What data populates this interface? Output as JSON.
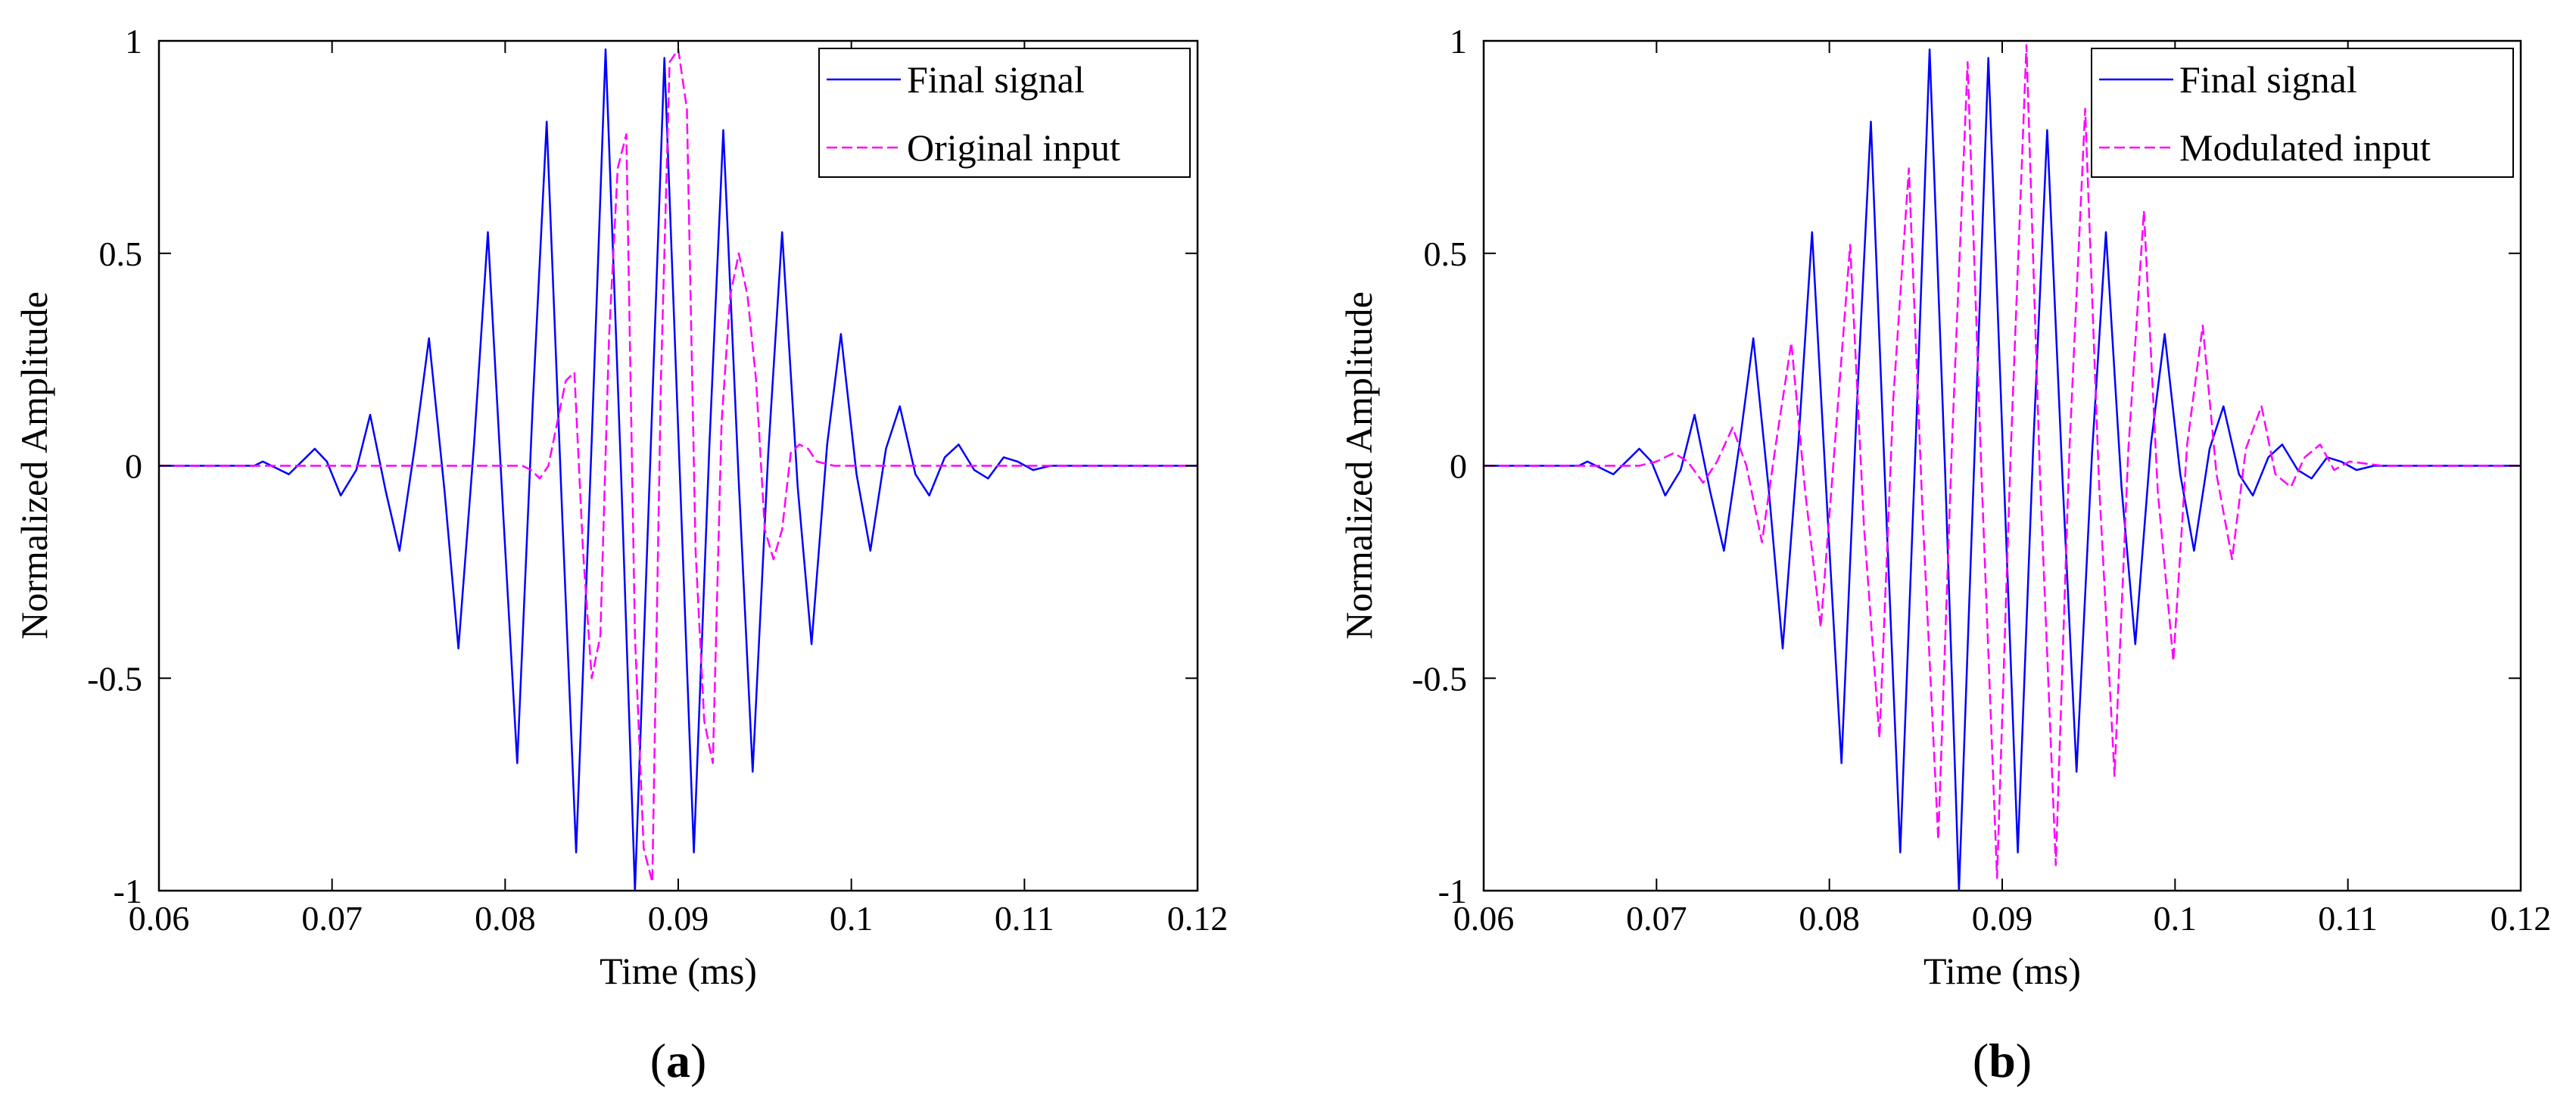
{
  "chart_data": [
    {
      "type": "line",
      "caption": "a",
      "title": "",
      "xlabel": "Time (ms)",
      "ylabel": "Normalized Amplitude",
      "xlim": [
        0.06,
        0.12
      ],
      "ylim": [
        -1,
        1
      ],
      "xticks": [
        0.06,
        0.07,
        0.08,
        0.09,
        0.1,
        0.11,
        0.12
      ],
      "xtick_labels": [
        "0.06",
        "0.07",
        "0.08",
        "0.09",
        "0.1",
        "0.11",
        "0.12"
      ],
      "yticks": [
        -1,
        -0.5,
        0,
        0.5,
        1
      ],
      "ytick_labels": [
        "-1",
        "-0.5",
        "0",
        "0.5",
        "1"
      ],
      "legend_position": "top-right",
      "series": [
        {
          "name": "Final signal",
          "color": "#0000ff",
          "style": "solid",
          "x": [
            0.06,
            0.0655,
            0.066,
            0.0665,
            0.067,
            0.0675,
            0.068,
            0.0685,
            0.069,
            0.0697,
            0.0705,
            0.0714,
            0.0722,
            0.0731,
            0.0739,
            0.0748,
            0.0756,
            0.0765,
            0.0773,
            0.0782,
            0.079,
            0.0799,
            0.0807,
            0.0816,
            0.0824,
            0.0833,
            0.0841,
            0.085,
            0.0858,
            0.0867,
            0.0875,
            0.0884,
            0.0892,
            0.0901,
            0.0909,
            0.0918,
            0.0926,
            0.0935,
            0.0943,
            0.0952,
            0.096,
            0.0969,
            0.0977,
            0.0986,
            0.0994,
            0.1003,
            0.1011,
            0.102,
            0.1028,
            0.1037,
            0.1045,
            0.1054,
            0.1062,
            0.1071,
            0.1079,
            0.1088,
            0.1096,
            0.1105,
            0.1115,
            0.113,
            0.115,
            0.12
          ],
          "y": [
            0,
            0,
            0.01,
            0,
            -0.01,
            -0.02,
            0,
            0.02,
            0.04,
            0.01,
            -0.07,
            -0.01,
            0.12,
            -0.06,
            -0.2,
            0.05,
            0.3,
            -0.06,
            -0.43,
            0.05,
            0.55,
            -0.12,
            -0.7,
            0.15,
            0.81,
            -0.12,
            -0.91,
            0.06,
            0.98,
            -0.02,
            -1.0,
            0.03,
            0.96,
            -0.03,
            -0.91,
            0.05,
            0.79,
            -0.04,
            -0.72,
            0.03,
            0.55,
            -0.05,
            -0.42,
            0.05,
            0.31,
            -0.02,
            -0.2,
            0.04,
            0.14,
            -0.02,
            -0.07,
            0.02,
            0.05,
            -0.01,
            -0.03,
            0.02,
            0.01,
            -0.01,
            0,
            0,
            0,
            0
          ]
        },
        {
          "name": "Original input",
          "color": "#ff00ff",
          "style": "dashed",
          "x": [
            0.06,
            0.0735,
            0.077,
            0.081,
            0.0815,
            0.082,
            0.0825,
            0.083,
            0.0835,
            0.084,
            0.0845,
            0.085,
            0.0855,
            0.086,
            0.0865,
            0.087,
            0.0875,
            0.088,
            0.0885,
            0.089,
            0.0895,
            0.09,
            0.0905,
            0.091,
            0.0915,
            0.092,
            0.0925,
            0.093,
            0.0935,
            0.094,
            0.0945,
            0.095,
            0.0955,
            0.096,
            0.0965,
            0.097,
            0.0975,
            0.098,
            0.099,
            0.101,
            0.12
          ],
          "y": [
            0,
            0,
            0,
            0,
            -0.01,
            -0.03,
            0,
            0.1,
            0.2,
            0.22,
            -0.2,
            -0.5,
            -0.4,
            0.3,
            0.7,
            0.78,
            -0.4,
            -0.9,
            -0.98,
            0.2,
            0.95,
            0.98,
            0.84,
            -0.2,
            -0.6,
            -0.7,
            0.1,
            0.4,
            0.5,
            0.4,
            0.2,
            -0.15,
            -0.22,
            -0.15,
            0.03,
            0.05,
            0.04,
            0.01,
            0,
            0,
            0
          ]
        }
      ]
    },
    {
      "type": "line",
      "caption": "b",
      "title": "",
      "xlabel": "Time (ms)",
      "ylabel": "Normalized Amplitude",
      "xlim": [
        0.06,
        0.12
      ],
      "ylim": [
        -1,
        1
      ],
      "xticks": [
        0.06,
        0.07,
        0.08,
        0.09,
        0.1,
        0.11,
        0.12
      ],
      "xtick_labels": [
        "0.06",
        "0.07",
        "0.08",
        "0.09",
        "0.1",
        "0.11",
        "0.12"
      ],
      "yticks": [
        -1,
        -0.5,
        0,
        0.5,
        1
      ],
      "ytick_labels": [
        "-1",
        "-0.5",
        "0",
        "0.5",
        "1"
      ],
      "legend_position": "top-right",
      "series": [
        {
          "name": "Final signal",
          "color": "#0000ff",
          "style": "solid",
          "x": [
            0.06,
            0.0655,
            0.066,
            0.0665,
            0.067,
            0.0675,
            0.068,
            0.0685,
            0.069,
            0.0697,
            0.0705,
            0.0714,
            0.0722,
            0.0731,
            0.0739,
            0.0748,
            0.0756,
            0.0765,
            0.0773,
            0.0782,
            0.079,
            0.0799,
            0.0807,
            0.0816,
            0.0824,
            0.0833,
            0.0841,
            0.085,
            0.0858,
            0.0867,
            0.0875,
            0.0884,
            0.0892,
            0.0901,
            0.0909,
            0.0918,
            0.0926,
            0.0935,
            0.0943,
            0.0952,
            0.096,
            0.0969,
            0.0977,
            0.0986,
            0.0994,
            0.1003,
            0.1011,
            0.102,
            0.1028,
            0.1037,
            0.1045,
            0.1054,
            0.1062,
            0.1071,
            0.1079,
            0.1088,
            0.1096,
            0.1105,
            0.1115,
            0.113,
            0.115,
            0.12
          ],
          "y": [
            0,
            0,
            0.01,
            0,
            -0.01,
            -0.02,
            0,
            0.02,
            0.04,
            0.01,
            -0.07,
            -0.01,
            0.12,
            -0.06,
            -0.2,
            0.05,
            0.3,
            -0.06,
            -0.43,
            0.05,
            0.55,
            -0.12,
            -0.7,
            0.15,
            0.81,
            -0.12,
            -0.91,
            0.06,
            0.98,
            -0.02,
            -1.0,
            0.03,
            0.96,
            -0.03,
            -0.91,
            0.05,
            0.79,
            -0.04,
            -0.72,
            0.03,
            0.55,
            -0.05,
            -0.42,
            0.05,
            0.31,
            -0.02,
            -0.2,
            0.04,
            0.14,
            -0.02,
            -0.07,
            0.02,
            0.05,
            -0.01,
            -0.03,
            0.02,
            0.01,
            -0.01,
            0,
            0,
            0,
            0
          ]
        },
        {
          "name": "Modulated input",
          "color": "#ff00ff",
          "style": "dashed",
          "x": [
            0.06,
            0.069,
            0.07,
            0.071,
            0.0718,
            0.0727,
            0.0735,
            0.0744,
            0.0752,
            0.0761,
            0.0769,
            0.0778,
            0.0786,
            0.0795,
            0.0803,
            0.0812,
            0.082,
            0.0829,
            0.0837,
            0.0846,
            0.0854,
            0.0863,
            0.0871,
            0.088,
            0.0888,
            0.0897,
            0.0905,
            0.0914,
            0.0922,
            0.0931,
            0.0939,
            0.0948,
            0.0956,
            0.0965,
            0.0973,
            0.0982,
            0.099,
            0.0999,
            0.1007,
            0.1016,
            0.1024,
            0.1033,
            0.1041,
            0.105,
            0.1058,
            0.1067,
            0.1075,
            0.1084,
            0.1092,
            0.1101,
            0.112,
            0.12
          ],
          "y": [
            0,
            0,
            0.01,
            0.03,
            0.01,
            -0.04,
            0.01,
            0.09,
            0.0,
            -0.18,
            0.05,
            0.29,
            -0.06,
            -0.38,
            0.04,
            0.52,
            -0.14,
            -0.64,
            0.16,
            0.7,
            -0.12,
            -0.88,
            0.06,
            0.95,
            -0.02,
            -0.97,
            0.04,
            0.99,
            -0.04,
            -0.94,
            0.05,
            0.84,
            -0.04,
            -0.73,
            0.04,
            0.6,
            -0.06,
            -0.46,
            0.05,
            0.33,
            -0.02,
            -0.22,
            0.04,
            0.14,
            -0.02,
            -0.05,
            0.02,
            0.05,
            -0.01,
            0.01,
            0,
            0
          ]
        }
      ]
    }
  ]
}
